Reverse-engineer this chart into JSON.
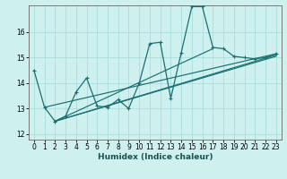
{
  "background_color": "#cef0ef",
  "grid_color": "#aadddd",
  "line_color": "#1a7070",
  "xlabel": "Humidex (Indice chaleur)",
  "xlim": [
    -0.5,
    23.5
  ],
  "ylim": [
    11.78,
    17.05
  ],
  "yticks": [
    12,
    13,
    14,
    15,
    16
  ],
  "xticks": [
    0,
    1,
    2,
    3,
    4,
    5,
    6,
    7,
    8,
    9,
    10,
    11,
    12,
    13,
    14,
    15,
    16,
    17,
    18,
    19,
    20,
    21,
    22,
    23
  ],
  "main_line": {
    "x": [
      0,
      1,
      2,
      3,
      4,
      5,
      6,
      7,
      8,
      9,
      10,
      11,
      12,
      13,
      14,
      15,
      16,
      17,
      18,
      19,
      20,
      21,
      22,
      23
    ],
    "y": [
      14.5,
      13.05,
      12.5,
      12.7,
      13.65,
      14.2,
      13.1,
      13.05,
      13.35,
      13.0,
      14.0,
      15.55,
      15.6,
      13.4,
      15.2,
      17.0,
      17.0,
      15.4,
      15.35,
      15.05,
      15.0,
      14.95,
      15.0,
      15.15
    ]
  },
  "trend_lines": [
    {
      "x": [
        1,
        23
      ],
      "y": [
        13.05,
        15.15
      ]
    },
    {
      "x": [
        2,
        23
      ],
      "y": [
        12.5,
        15.1
      ]
    },
    {
      "x": [
        2,
        23
      ],
      "y": [
        12.5,
        15.05
      ]
    },
    {
      "x": [
        2,
        17
      ],
      "y": [
        12.5,
        15.35
      ]
    }
  ]
}
